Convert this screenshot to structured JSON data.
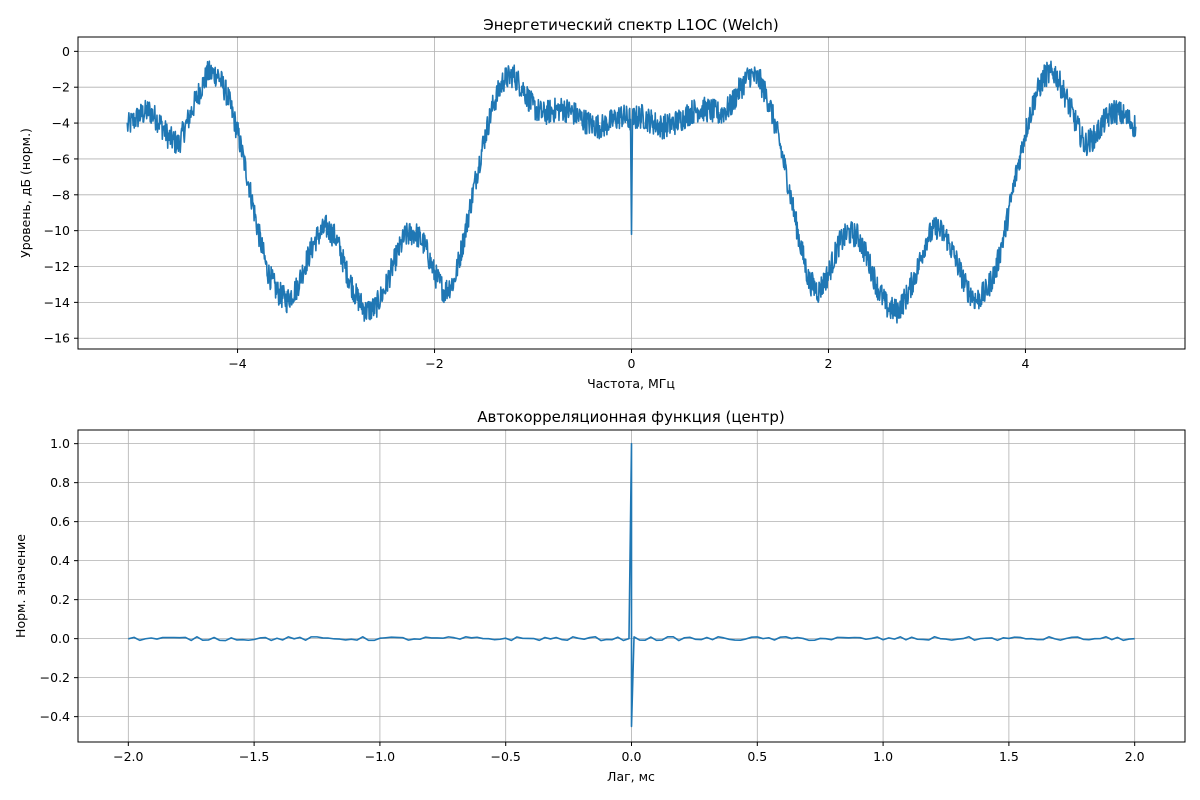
{
  "chart_data": [
    {
      "type": "line",
      "title": "Энергетический спектр L1OC (Welch)",
      "xlabel": "Частота, МГц",
      "ylabel": "Уровень, дБ (норм.)",
      "xlim": [
        -5.62,
        5.62
      ],
      "ylim": [
        -16.6,
        0.8
      ],
      "grid": true,
      "line_color": "#1f77b4",
      "xticks": [
        -4,
        -2,
        0,
        2,
        4
      ],
      "xtick_labels": [
        "−4",
        "−2",
        "0",
        "2",
        "4"
      ],
      "yticks": [
        0,
        -2,
        -4,
        -6,
        -8,
        -10,
        -12,
        -14,
        -16
      ],
      "ytick_labels": [
        "0",
        "−2",
        "−4",
        "−6",
        "−8",
        "−10",
        "−12",
        "−14",
        "−16"
      ],
      "series": [
        {
          "x": [
            -5.12,
            -5.0,
            -4.9,
            -4.8,
            -4.7,
            -4.6,
            -4.5,
            -4.4,
            -4.3,
            -4.2,
            -4.1,
            -4.0,
            -3.9,
            -3.8,
            -3.7,
            -3.6,
            -3.5,
            -3.4,
            -3.3,
            -3.2,
            -3.1,
            -3.0,
            -2.9,
            -2.8,
            -2.7,
            -2.6,
            -2.5,
            -2.4,
            -2.3,
            -2.2,
            -2.1,
            -2.0,
            -1.9,
            -1.8,
            -1.7,
            -1.6,
            -1.5,
            -1.4,
            -1.3,
            -1.2,
            -1.1,
            -1.0,
            -0.9,
            -0.8,
            -0.7,
            -0.6,
            -0.5,
            -0.4,
            -0.3,
            -0.2,
            -0.1,
            -0.01,
            0.0,
            0.01,
            0.1,
            0.2,
            0.3,
            0.4,
            0.5,
            0.6,
            0.7,
            0.8,
            0.9,
            1.0,
            1.1,
            1.2,
            1.3,
            1.4,
            1.5,
            1.6,
            1.7,
            1.8,
            1.9,
            2.0,
            2.1,
            2.2,
            2.3,
            2.4,
            2.5,
            2.6,
            2.7,
            2.8,
            2.9,
            3.0,
            3.1,
            3.2,
            3.3,
            3.4,
            3.5,
            3.6,
            3.7,
            3.8,
            3.9,
            4.0,
            4.1,
            4.2,
            4.3,
            4.4,
            4.5,
            4.6,
            4.7,
            4.8,
            4.9,
            5.0,
            5.12
          ],
          "y": [
            -4.2,
            -3.6,
            -3.3,
            -3.9,
            -4.8,
            -5.2,
            -3.8,
            -2.4,
            -1.2,
            -1.3,
            -2.5,
            -4.5,
            -7.0,
            -9.8,
            -12.2,
            -13.4,
            -13.9,
            -13.2,
            -11.7,
            -10.4,
            -9.8,
            -10.4,
            -12.2,
            -13.6,
            -14.5,
            -14.3,
            -13.2,
            -11.6,
            -10.3,
            -10.1,
            -10.8,
            -12.4,
            -13.4,
            -12.8,
            -10.4,
            -7.6,
            -5.0,
            -2.9,
            -1.6,
            -1.3,
            -2.1,
            -3.1,
            -3.5,
            -3.3,
            -3.2,
            -3.4,
            -3.8,
            -4.1,
            -4.2,
            -3.9,
            -3.6,
            -3.8,
            -10.2,
            -3.8,
            -3.6,
            -3.9,
            -4.2,
            -4.1,
            -3.8,
            -3.4,
            -3.2,
            -3.3,
            -3.5,
            -3.1,
            -2.1,
            -1.3,
            -1.6,
            -2.9,
            -5.0,
            -7.6,
            -10.4,
            -12.8,
            -13.4,
            -12.4,
            -10.8,
            -10.1,
            -10.3,
            -11.6,
            -13.2,
            -14.3,
            -14.5,
            -13.6,
            -12.2,
            -10.4,
            -9.8,
            -10.4,
            -11.7,
            -13.2,
            -13.9,
            -13.4,
            -12.2,
            -9.8,
            -7.0,
            -4.5,
            -2.5,
            -1.3,
            -1.2,
            -2.4,
            -3.8,
            -5.2,
            -4.8,
            -3.9,
            -3.3,
            -3.6,
            -4.2
          ]
        }
      ]
    },
    {
      "type": "line",
      "title": "Автокорреляционная функция (центр)",
      "xlabel": "Лаг, мс",
      "ylabel": "Норм. значение",
      "xlim": [
        -2.2,
        2.2
      ],
      "ylim": [
        -0.53,
        1.07
      ],
      "grid": true,
      "line_color": "#1f77b4",
      "xticks": [
        -2.0,
        -1.5,
        -1.0,
        -0.5,
        0.0,
        0.5,
        1.0,
        1.5,
        2.0
      ],
      "xtick_labels": [
        "−2.0",
        "−1.5",
        "−1.0",
        "−0.5",
        "0.0",
        "0.5",
        "1.0",
        "1.5",
        "2.0"
      ],
      "yticks": [
        1.0,
        0.8,
        0.6,
        0.4,
        0.2,
        0.0,
        -0.2,
        -0.4
      ],
      "ytick_labels": [
        "1.0",
        "0.8",
        "0.6",
        "0.4",
        "0.2",
        "0.0",
        "−0.2",
        "−0.4"
      ],
      "series": [
        {
          "x": [
            -2.0,
            -1.5,
            -1.0,
            -0.5,
            -0.01,
            0.0,
            0.0,
            0.01,
            0.5,
            1.0,
            1.5,
            2.0
          ],
          "y": [
            0.0,
            0.0,
            0.0,
            0.0,
            0.0,
            1.0,
            -0.45,
            0.0,
            0.0,
            0.0,
            0.0,
            0.0
          ]
        }
      ]
    }
  ]
}
